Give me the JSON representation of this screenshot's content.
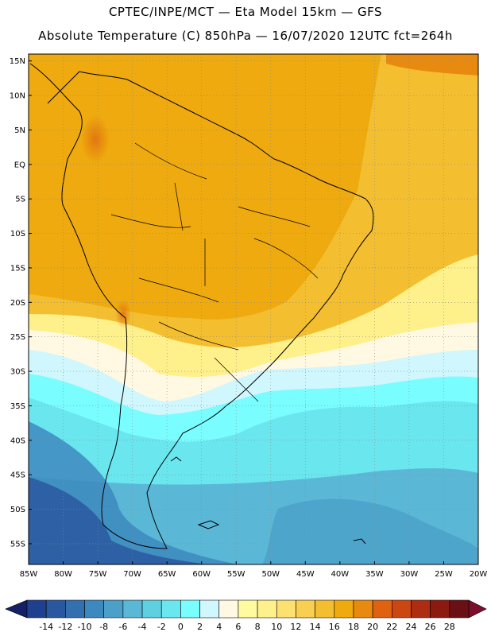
{
  "title": {
    "line1": "CPTEC/INPE/MCT —  Eta Model 15km — GFS",
    "line2": "Absolute Temperature (C) 850hPa — 16/07/2020 12UTC fct=264h"
  },
  "map": {
    "region": "South America",
    "lon_range": [
      -85,
      -20
    ],
    "lat_range": [
      -58,
      16
    ],
    "lat_ticks": [
      {
        "value": 15,
        "label": "15N"
      },
      {
        "value": 10,
        "label": "10N"
      },
      {
        "value": 5,
        "label": "5N"
      },
      {
        "value": 0,
        "label": "EQ"
      },
      {
        "value": -5,
        "label": "5S"
      },
      {
        "value": -10,
        "label": "10S"
      },
      {
        "value": -15,
        "label": "15S"
      },
      {
        "value": -20,
        "label": "20S"
      },
      {
        "value": -25,
        "label": "25S"
      },
      {
        "value": -30,
        "label": "30S"
      },
      {
        "value": -35,
        "label": "35S"
      },
      {
        "value": -40,
        "label": "40S"
      },
      {
        "value": -45,
        "label": "45S"
      },
      {
        "value": -50,
        "label": "50S"
      },
      {
        "value": -55,
        "label": "55S"
      }
    ],
    "lon_ticks": [
      {
        "value": -85,
        "label": "85W"
      },
      {
        "value": -80,
        "label": "80W"
      },
      {
        "value": -75,
        "label": "75W"
      },
      {
        "value": -70,
        "label": "70W"
      },
      {
        "value": -65,
        "label": "65W"
      },
      {
        "value": -60,
        "label": "60W"
      },
      {
        "value": -55,
        "label": "55W"
      },
      {
        "value": -50,
        "label": "50W"
      },
      {
        "value": -45,
        "label": "45W"
      },
      {
        "value": -40,
        "label": "40W"
      },
      {
        "value": -35,
        "label": "35W"
      },
      {
        "value": -30,
        "label": "30W"
      },
      {
        "value": -25,
        "label": "25W"
      },
      {
        "value": -20,
        "label": "20W"
      }
    ],
    "gridlines": "dotted"
  },
  "colorbar": {
    "labels": [
      "-14",
      "-12",
      "-10",
      "-8",
      "-6",
      "-4",
      "-2",
      "0",
      "2",
      "4",
      "6",
      "8",
      "10",
      "12",
      "14",
      "16",
      "18",
      "20",
      "22",
      "24",
      "26",
      "28"
    ],
    "colors": [
      "#1f3f8f",
      "#2a58a0",
      "#3470b0",
      "#3d88be",
      "#4aa0c8",
      "#5ab8d6",
      "#5fd0e0",
      "#6ae6ee",
      "#7afdff",
      "#cff7fd",
      "#fff8e2",
      "#fefaa0",
      "#fef08a",
      "#fce170",
      "#f8cf50",
      "#f3be30",
      "#eeaa0e",
      "#e88a10",
      "#de6210",
      "#cc4612",
      "#ae2c12",
      "#8c1a10",
      "#6a1014"
    ],
    "lower_arrow_color": "#141f66",
    "upper_arrow_color": "#7b0f2d"
  }
}
